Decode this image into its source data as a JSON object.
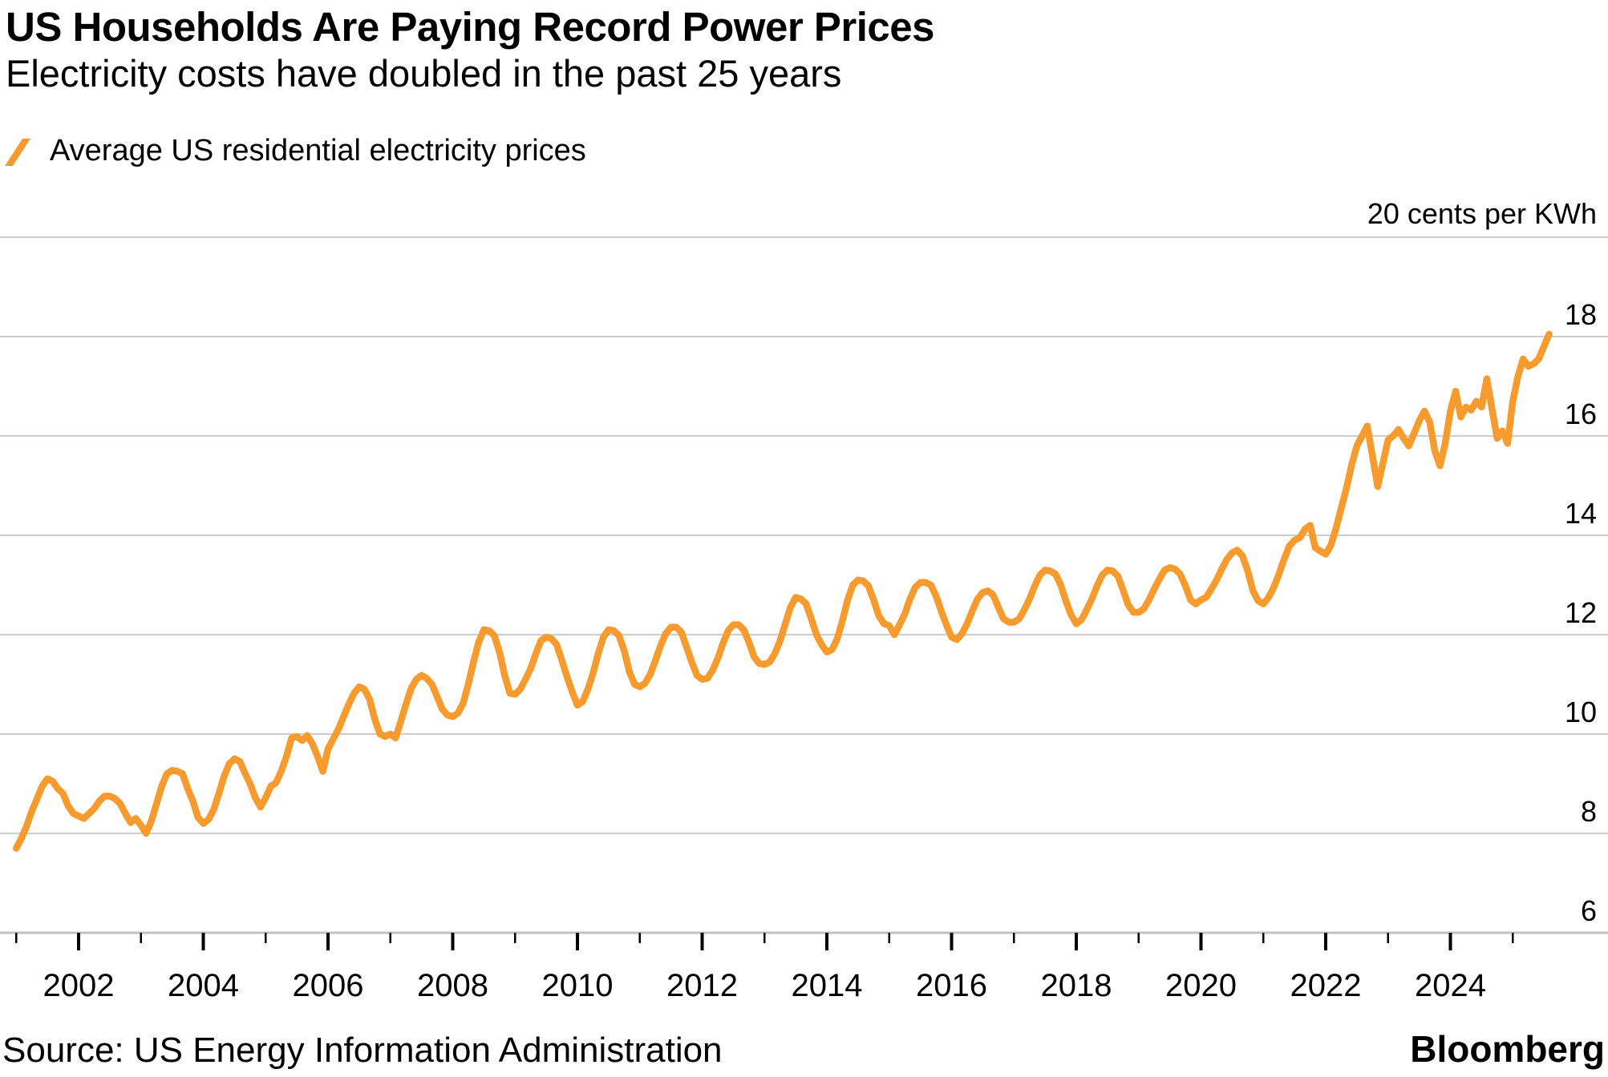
{
  "header": {
    "title": "US Households Are Paying Record Power Prices",
    "subtitle": "Electricity costs have doubled in the past 25 years"
  },
  "legend": {
    "label": "Average US residential electricity prices"
  },
  "footer": {
    "source": "Source: US Energy Information Administration",
    "brand": "Bloomberg"
  },
  "colors": {
    "line": "#F79B2E",
    "grid": "#CDCDCD",
    "axis_line": "#C2C2C2",
    "tick": "#000000",
    "text": "#000000",
    "background": "#FFFFFF"
  },
  "chart_data": {
    "type": "line",
    "title": "US Households Are Paying Record Power Prices",
    "subtitle": "Electricity costs have doubled in the past 25 years",
    "series_name": "Average US residential electricity prices",
    "unit_top_label": "20 cents per KWh",
    "line_color": "#F79B2E",
    "frequency": "monthly",
    "start_year": 2001,
    "start_month": 1,
    "end_year": 2025,
    "end_month": 8,
    "ylim": [
      6,
      20
    ],
    "y_top_gridline": 20,
    "y_ticks": [
      6,
      8,
      10,
      12,
      14,
      16,
      18
    ],
    "x_major_tick_years": [
      2002,
      2004,
      2006,
      2008,
      2010,
      2012,
      2014,
      2016,
      2018,
      2020,
      2022,
      2024
    ],
    "x_minor_tick_years": [
      2001,
      2003,
      2005,
      2007,
      2009,
      2011,
      2013,
      2015,
      2017,
      2019,
      2021,
      2023,
      2025
    ],
    "grid": true,
    "legend_position": "top-left",
    "values": [
      7.7,
      7.9,
      8.15,
      8.45,
      8.7,
      8.95,
      9.1,
      9.05,
      8.9,
      8.8,
      8.55,
      8.4,
      8.35,
      8.3,
      8.4,
      8.5,
      8.65,
      8.75,
      8.75,
      8.7,
      8.6,
      8.4,
      8.22,
      8.3,
      8.16,
      8.0,
      8.25,
      8.6,
      8.95,
      9.2,
      9.27,
      9.25,
      9.2,
      8.9,
      8.65,
      8.32,
      8.2,
      8.28,
      8.48,
      8.8,
      9.15,
      9.4,
      9.5,
      9.45,
      9.22,
      9.0,
      8.72,
      8.53,
      8.72,
      8.95,
      9.02,
      9.25,
      9.55,
      9.92,
      9.95,
      9.87,
      9.97,
      9.8,
      9.55,
      9.25,
      9.7,
      9.9,
      10.1,
      10.35,
      10.6,
      10.82,
      10.95,
      10.9,
      10.7,
      10.3,
      10.0,
      9.95,
      10.0,
      9.92,
      10.25,
      10.6,
      10.92,
      11.1,
      11.18,
      11.12,
      11.0,
      10.75,
      10.5,
      10.38,
      10.35,
      10.42,
      10.62,
      11.0,
      11.45,
      11.85,
      12.1,
      12.08,
      11.98,
      11.65,
      11.18,
      10.82,
      10.8,
      10.9,
      11.1,
      11.32,
      11.62,
      11.88,
      11.95,
      11.92,
      11.8,
      11.48,
      11.15,
      10.85,
      10.58,
      10.65,
      10.9,
      11.22,
      11.62,
      11.95,
      12.1,
      12.08,
      11.98,
      11.68,
      11.25,
      11.0,
      10.95,
      11.02,
      11.2,
      11.48,
      11.78,
      12.02,
      12.15,
      12.15,
      12.05,
      11.75,
      11.45,
      11.18,
      11.1,
      11.12,
      11.28,
      11.52,
      11.82,
      12.08,
      12.2,
      12.2,
      12.1,
      11.85,
      11.55,
      11.42,
      11.4,
      11.45,
      11.62,
      11.88,
      12.22,
      12.55,
      12.75,
      12.72,
      12.62,
      12.32,
      12.0,
      11.8,
      11.65,
      11.7,
      11.92,
      12.28,
      12.7,
      13.0,
      13.1,
      13.08,
      12.98,
      12.7,
      12.38,
      12.22,
      12.18,
      12.0,
      12.2,
      12.42,
      12.72,
      12.95,
      13.05,
      13.05,
      13.0,
      12.78,
      12.48,
      12.2,
      11.95,
      11.9,
      12.02,
      12.22,
      12.48,
      12.72,
      12.85,
      12.88,
      12.8,
      12.55,
      12.32,
      12.25,
      12.25,
      12.32,
      12.5,
      12.72,
      12.98,
      13.2,
      13.3,
      13.28,
      13.22,
      13.0,
      12.68,
      12.4,
      12.22,
      12.3,
      12.5,
      12.72,
      12.98,
      13.2,
      13.3,
      13.28,
      13.18,
      12.9,
      12.6,
      12.45,
      12.45,
      12.52,
      12.7,
      12.92,
      13.12,
      13.3,
      13.35,
      13.32,
      13.22,
      12.98,
      12.7,
      12.62,
      12.7,
      12.75,
      12.92,
      13.1,
      13.32,
      13.52,
      13.65,
      13.7,
      13.58,
      13.28,
      12.88,
      12.68,
      12.62,
      12.75,
      12.95,
      13.22,
      13.52,
      13.78,
      13.9,
      13.95,
      14.12,
      14.2,
      13.75,
      13.68,
      13.62,
      13.8,
      14.15,
      14.55,
      14.95,
      15.42,
      15.8,
      16.0,
      16.2,
      15.6,
      14.98,
      15.45,
      15.92,
      16.0,
      16.13,
      15.95,
      15.8,
      16.05,
      16.3,
      16.5,
      16.28,
      15.7,
      15.4,
      15.85,
      16.5,
      16.9,
      16.38,
      16.58,
      16.52,
      16.7,
      16.58,
      17.15,
      16.55,
      15.95,
      16.1,
      15.85,
      16.7,
      17.2,
      17.55,
      17.4,
      17.45,
      17.55,
      17.8,
      18.05
    ]
  }
}
